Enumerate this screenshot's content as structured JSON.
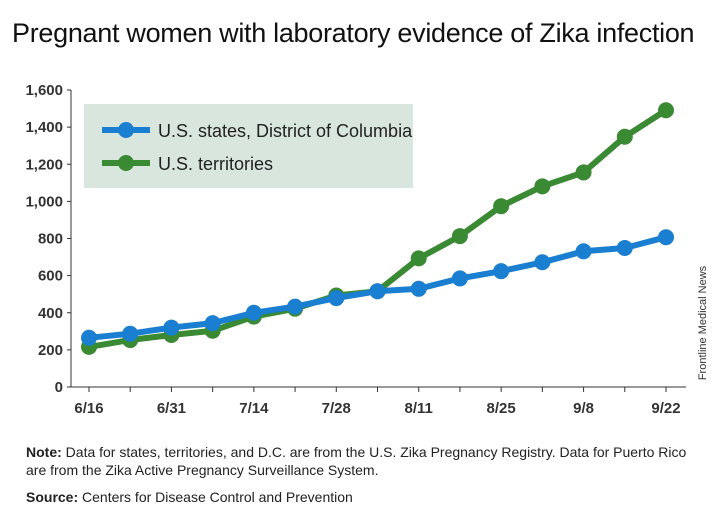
{
  "title": "Pregnant women with laboratory evidence of Zika infection",
  "side_credit": "Frontline Medical News",
  "note_label": "Note:",
  "note_text": " Data for states, territories, and D.C. are from the U.S. Zika Pregnancy Registry. Data for Puerto Rico are from the Zika Active Pregnancy Surveillance System.",
  "source_label": "Source:",
  "source_text": " Centers for Disease Control and Prevention",
  "colors": {
    "blue": "#1a7fd0",
    "green": "#3a8a34",
    "legend_bg": "#d9e6dd",
    "axis": "#333333"
  },
  "chart_data": {
    "type": "line",
    "title": "Pregnant women with laboratory evidence of Zika infection",
    "xlabel": "",
    "ylabel": "",
    "ylim": [
      0,
      1600
    ],
    "y_ticks": [
      "0",
      "200",
      "400",
      "600",
      "800",
      "1,000",
      "1,200",
      "1,400",
      "1,600"
    ],
    "y_tick_values": [
      0,
      200,
      400,
      600,
      800,
      1000,
      1200,
      1400,
      1600
    ],
    "x_tick_labels": [
      "6/16",
      "6/31",
      "7/14",
      "7/28",
      "8/11",
      "8/25",
      "9/8",
      "9/22"
    ],
    "x_tick_indices": [
      0,
      2,
      4,
      6,
      8,
      10,
      12,
      14
    ],
    "x_count": 15,
    "grid": false,
    "legend_position": "top-left",
    "series": [
      {
        "name": "U.S. states, District of Columbia",
        "color": "#1a7fd0",
        "values": [
          265,
          287,
          320,
          344,
          400,
          433,
          479,
          516,
          529,
          585,
          624,
          672,
          731,
          749,
          807
        ]
      },
      {
        "name": "U.S. territories",
        "color": "#3a8a34",
        "values": [
          216,
          253,
          280,
          303,
          379,
          422,
          493,
          516,
          693,
          813,
          974,
          1081,
          1156,
          1348,
          1491
        ]
      }
    ]
  }
}
